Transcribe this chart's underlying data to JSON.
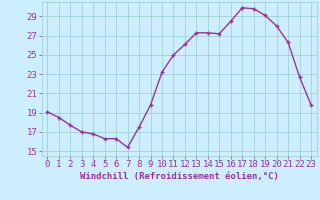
{
  "x": [
    0,
    1,
    2,
    3,
    4,
    5,
    6,
    7,
    8,
    9,
    10,
    11,
    12,
    13,
    14,
    15,
    16,
    17,
    18,
    19,
    20,
    21,
    22,
    23
  ],
  "y": [
    19.1,
    18.5,
    17.7,
    17.0,
    16.8,
    16.3,
    16.3,
    15.4,
    17.5,
    19.8,
    23.2,
    25.0,
    26.1,
    27.3,
    27.3,
    27.2,
    28.5,
    29.9,
    29.8,
    29.1,
    28.0,
    26.3,
    22.7,
    19.8
  ],
  "line_color": "#993399",
  "marker": "+",
  "xlabel": "Windchill (Refroidissement éolien,°C)",
  "xlim": [
    -0.5,
    23.5
  ],
  "ylim": [
    14.5,
    30.5
  ],
  "yticks": [
    15,
    17,
    19,
    21,
    23,
    25,
    27,
    29
  ],
  "xticks": [
    0,
    1,
    2,
    3,
    4,
    5,
    6,
    7,
    8,
    9,
    10,
    11,
    12,
    13,
    14,
    15,
    16,
    17,
    18,
    19,
    20,
    21,
    22,
    23
  ],
  "background_color": "#cceeff",
  "grid_color": "#99cccc",
  "text_color": "#993399",
  "xlabel_fontsize": 6.5,
  "tick_fontsize": 6.5,
  "line_width": 1.0,
  "marker_size": 3.5,
  "marker_ew": 1.0
}
